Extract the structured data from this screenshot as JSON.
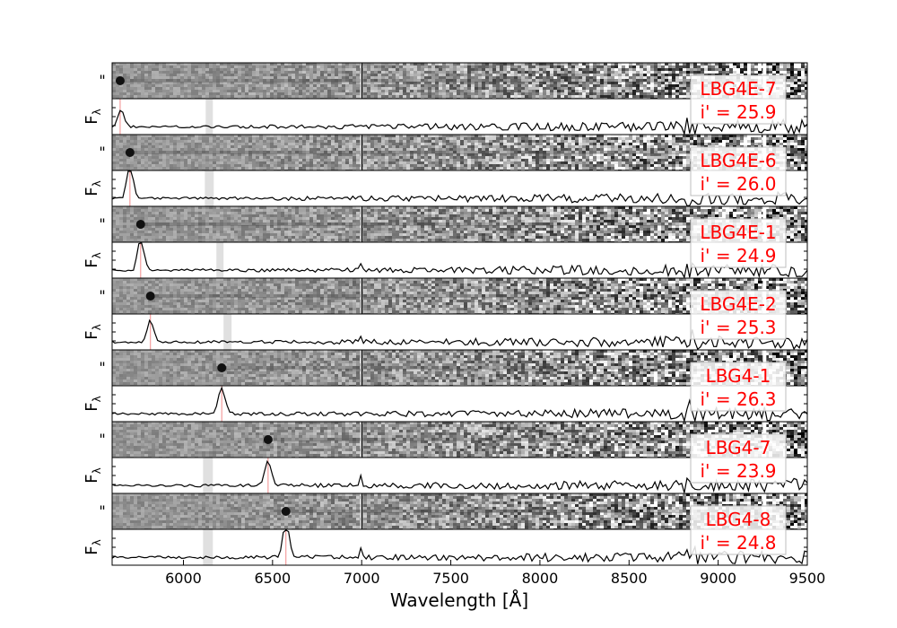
{
  "chart_data": {
    "type": "line",
    "xlabel": "Wavelength [Å]",
    "xlim": [
      5600,
      9500
    ],
    "xticks": [
      6000,
      6500,
      7000,
      7500,
      8000,
      8500,
      9000,
      9500
    ],
    "panel_ylabel_2d": "\"",
    "panel_ylabel_1d": "F_λ",
    "series": [
      {
        "name": "LBG4E-7",
        "mag_label": "i' = 25.9",
        "line_x": 5645,
        "peak_x": 5650,
        "peak_amp": 0.45,
        "gray_band": [
          6125,
          6165
        ],
        "seed": 7
      },
      {
        "name": "LBG4E-6",
        "mag_label": "i' = 26.0",
        "line_x": 5700,
        "peak_x": 5700,
        "peak_amp": 0.9,
        "gray_band": [
          6120,
          6170
        ],
        "seed": 6
      },
      {
        "name": "LBG4E-1",
        "mag_label": "i' = 24.9",
        "line_x": 5760,
        "peak_x": 5760,
        "peak_amp": 0.85,
        "gray_band": [
          6185,
          6225
        ],
        "seed": 1
      },
      {
        "name": "LBG4E-2",
        "mag_label": "i' = 25.3",
        "line_x": 5815,
        "peak_x": 5815,
        "peak_amp": 0.6,
        "gray_band": [
          6225,
          6270
        ],
        "seed": 2
      },
      {
        "name": "LBG4-1",
        "mag_label": "i' = 26.3",
        "line_x": 6215,
        "peak_x": 6215,
        "peak_amp": 0.75,
        "gray_band": null,
        "seed": 11
      },
      {
        "name": "LBG4-7",
        "mag_label": "i' = 23.9",
        "line_x": 6475,
        "peak_x": 6475,
        "peak_amp": 0.7,
        "gray_band": [
          6110,
          6165
        ],
        "seed": 17
      },
      {
        "name": "LBG4-8",
        "mag_label": "i' = 24.8",
        "line_x": 6575,
        "peak_x": 6575,
        "peak_amp": 0.95,
        "gray_band": [
          6110,
          6165
        ],
        "seed": 18
      }
    ]
  }
}
